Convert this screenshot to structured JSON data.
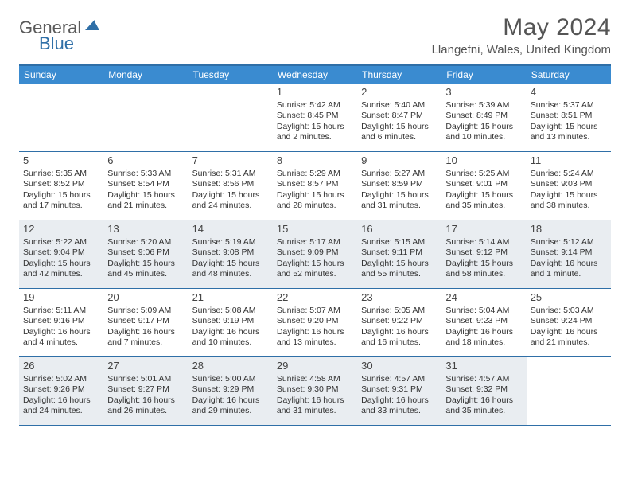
{
  "brand": {
    "part1": "General",
    "part2": "Blue"
  },
  "title": {
    "month": "May 2024",
    "location": "Llangefni, Wales, United Kingdom"
  },
  "colors": {
    "accent": "#2f6fa7",
    "header_bg": "#3a8bd0",
    "shade_bg": "#e9edf1",
    "text": "#333333",
    "muted": "#555555"
  },
  "dow": [
    "Sunday",
    "Monday",
    "Tuesday",
    "Wednesday",
    "Thursday",
    "Friday",
    "Saturday"
  ],
  "shaded_dates": [
    12,
    13,
    14,
    15,
    16,
    17,
    18,
    26,
    27,
    28,
    29,
    30,
    31
  ],
  "cells": [
    {
      "date": null
    },
    {
      "date": null
    },
    {
      "date": null
    },
    {
      "date": 1,
      "sunrise": "5:42 AM",
      "sunset": "8:45 PM",
      "daylight": "15 hours and 2 minutes."
    },
    {
      "date": 2,
      "sunrise": "5:40 AM",
      "sunset": "8:47 PM",
      "daylight": "15 hours and 6 minutes."
    },
    {
      "date": 3,
      "sunrise": "5:39 AM",
      "sunset": "8:49 PM",
      "daylight": "15 hours and 10 minutes."
    },
    {
      "date": 4,
      "sunrise": "5:37 AM",
      "sunset": "8:51 PM",
      "daylight": "15 hours and 13 minutes."
    },
    {
      "date": 5,
      "sunrise": "5:35 AM",
      "sunset": "8:52 PM",
      "daylight": "15 hours and 17 minutes."
    },
    {
      "date": 6,
      "sunrise": "5:33 AM",
      "sunset": "8:54 PM",
      "daylight": "15 hours and 21 minutes."
    },
    {
      "date": 7,
      "sunrise": "5:31 AM",
      "sunset": "8:56 PM",
      "daylight": "15 hours and 24 minutes."
    },
    {
      "date": 8,
      "sunrise": "5:29 AM",
      "sunset": "8:57 PM",
      "daylight": "15 hours and 28 minutes."
    },
    {
      "date": 9,
      "sunrise": "5:27 AM",
      "sunset": "8:59 PM",
      "daylight": "15 hours and 31 minutes."
    },
    {
      "date": 10,
      "sunrise": "5:25 AM",
      "sunset": "9:01 PM",
      "daylight": "15 hours and 35 minutes."
    },
    {
      "date": 11,
      "sunrise": "5:24 AM",
      "sunset": "9:03 PM",
      "daylight": "15 hours and 38 minutes."
    },
    {
      "date": 12,
      "sunrise": "5:22 AM",
      "sunset": "9:04 PM",
      "daylight": "15 hours and 42 minutes."
    },
    {
      "date": 13,
      "sunrise": "5:20 AM",
      "sunset": "9:06 PM",
      "daylight": "15 hours and 45 minutes."
    },
    {
      "date": 14,
      "sunrise": "5:19 AM",
      "sunset": "9:08 PM",
      "daylight": "15 hours and 48 minutes."
    },
    {
      "date": 15,
      "sunrise": "5:17 AM",
      "sunset": "9:09 PM",
      "daylight": "15 hours and 52 minutes."
    },
    {
      "date": 16,
      "sunrise": "5:15 AM",
      "sunset": "9:11 PM",
      "daylight": "15 hours and 55 minutes."
    },
    {
      "date": 17,
      "sunrise": "5:14 AM",
      "sunset": "9:12 PM",
      "daylight": "15 hours and 58 minutes."
    },
    {
      "date": 18,
      "sunrise": "5:12 AM",
      "sunset": "9:14 PM",
      "daylight": "16 hours and 1 minute."
    },
    {
      "date": 19,
      "sunrise": "5:11 AM",
      "sunset": "9:16 PM",
      "daylight": "16 hours and 4 minutes."
    },
    {
      "date": 20,
      "sunrise": "5:09 AM",
      "sunset": "9:17 PM",
      "daylight": "16 hours and 7 minutes."
    },
    {
      "date": 21,
      "sunrise": "5:08 AM",
      "sunset": "9:19 PM",
      "daylight": "16 hours and 10 minutes."
    },
    {
      "date": 22,
      "sunrise": "5:07 AM",
      "sunset": "9:20 PM",
      "daylight": "16 hours and 13 minutes."
    },
    {
      "date": 23,
      "sunrise": "5:05 AM",
      "sunset": "9:22 PM",
      "daylight": "16 hours and 16 minutes."
    },
    {
      "date": 24,
      "sunrise": "5:04 AM",
      "sunset": "9:23 PM",
      "daylight": "16 hours and 18 minutes."
    },
    {
      "date": 25,
      "sunrise": "5:03 AM",
      "sunset": "9:24 PM",
      "daylight": "16 hours and 21 minutes."
    },
    {
      "date": 26,
      "sunrise": "5:02 AM",
      "sunset": "9:26 PM",
      "daylight": "16 hours and 24 minutes."
    },
    {
      "date": 27,
      "sunrise": "5:01 AM",
      "sunset": "9:27 PM",
      "daylight": "16 hours and 26 minutes."
    },
    {
      "date": 28,
      "sunrise": "5:00 AM",
      "sunset": "9:29 PM",
      "daylight": "16 hours and 29 minutes."
    },
    {
      "date": 29,
      "sunrise": "4:58 AM",
      "sunset": "9:30 PM",
      "daylight": "16 hours and 31 minutes."
    },
    {
      "date": 30,
      "sunrise": "4:57 AM",
      "sunset": "9:31 PM",
      "daylight": "16 hours and 33 minutes."
    },
    {
      "date": 31,
      "sunrise": "4:57 AM",
      "sunset": "9:32 PM",
      "daylight": "16 hours and 35 minutes."
    },
    {
      "date": null
    }
  ],
  "labels": {
    "sunrise": "Sunrise:",
    "sunset": "Sunset:",
    "daylight": "Daylight:"
  }
}
